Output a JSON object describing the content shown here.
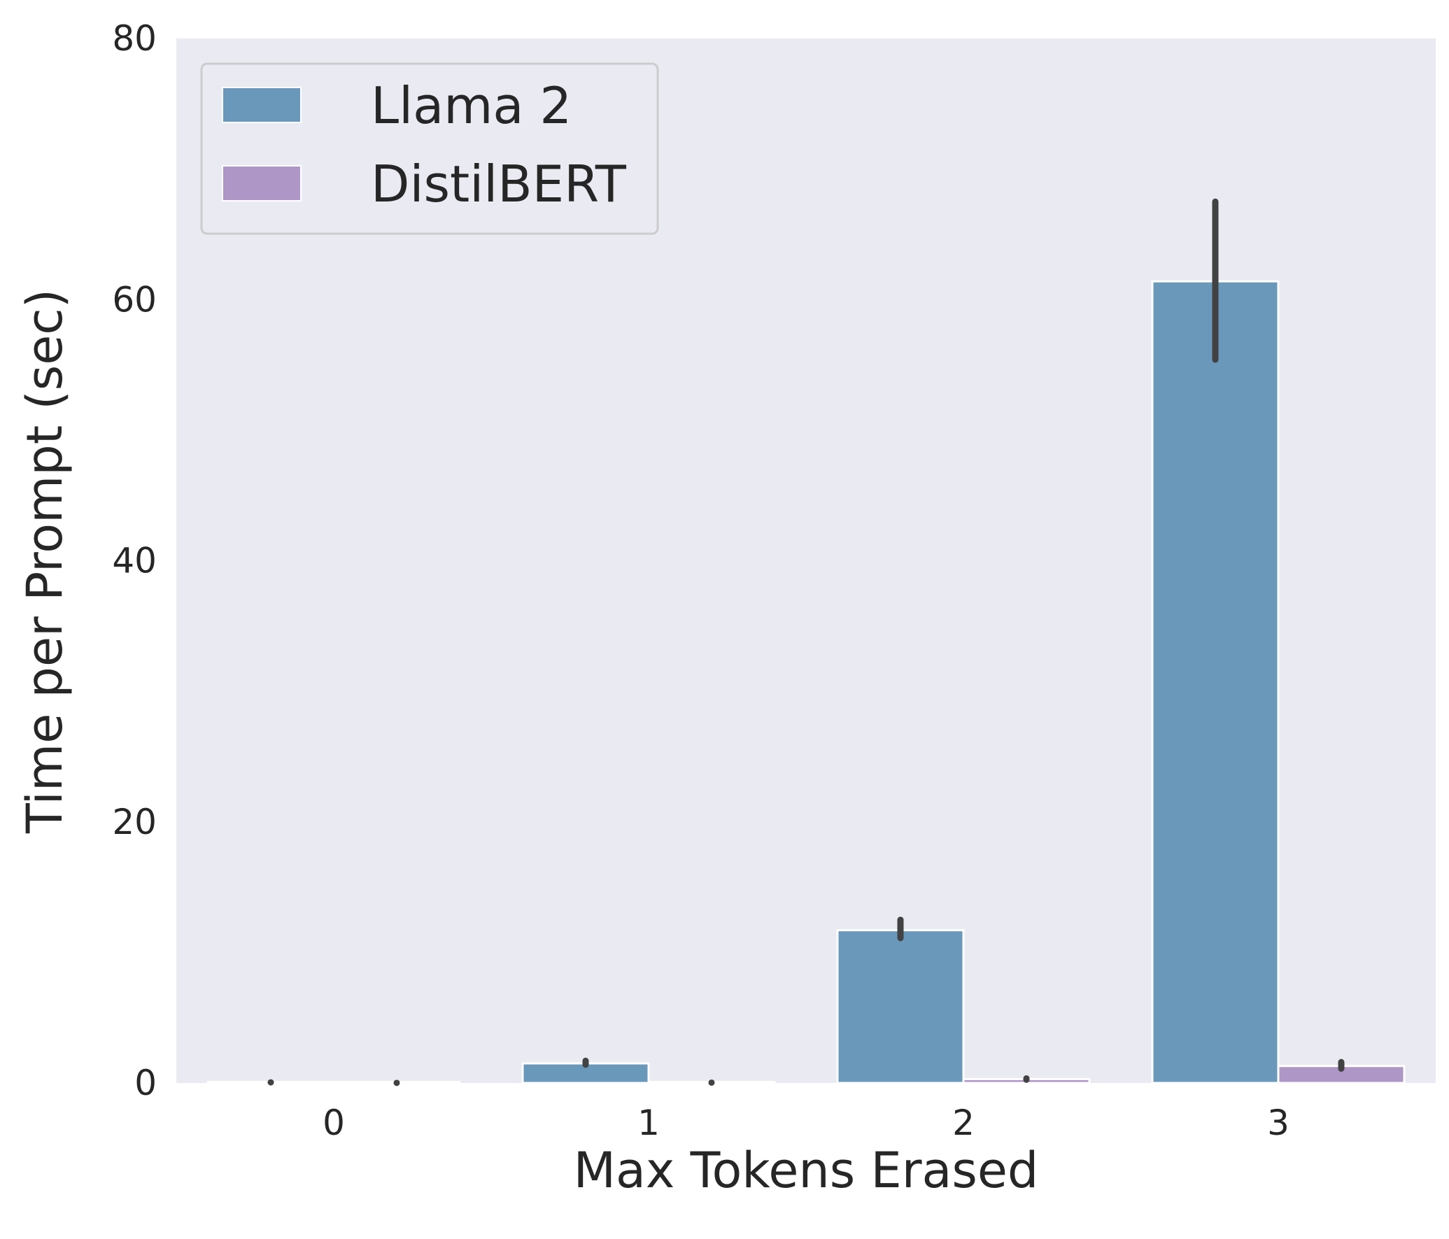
{
  "chart_data": {
    "type": "bar",
    "xlabel": "Max Tokens Erased",
    "ylabel": "Time per Prompt (sec)",
    "categories": [
      "0",
      "1",
      "2",
      "3"
    ],
    "ylim": [
      0,
      80
    ],
    "yticks": [
      "0",
      "20",
      "40",
      "60",
      "80"
    ],
    "grid": false,
    "legend_position": "top-left",
    "series": [
      {
        "name": "Llama 2",
        "color": "#6a98bb",
        "values": [
          0.05,
          1.5,
          11.7,
          61.4
        ],
        "error": [
          [
            0.05,
            0.05
          ],
          [
            1.4,
            1.7
          ],
          [
            11.1,
            12.5
          ],
          [
            55.4,
            67.5
          ]
        ]
      },
      {
        "name": "DistilBERT",
        "color": "#ae96c7",
        "values": [
          0.01,
          0.03,
          0.3,
          1.3
        ],
        "error": [
          [
            0.01,
            0.01
          ],
          [
            0.03,
            0.03
          ],
          [
            0.25,
            0.35
          ],
          [
            1.1,
            1.6
          ]
        ]
      }
    ]
  }
}
